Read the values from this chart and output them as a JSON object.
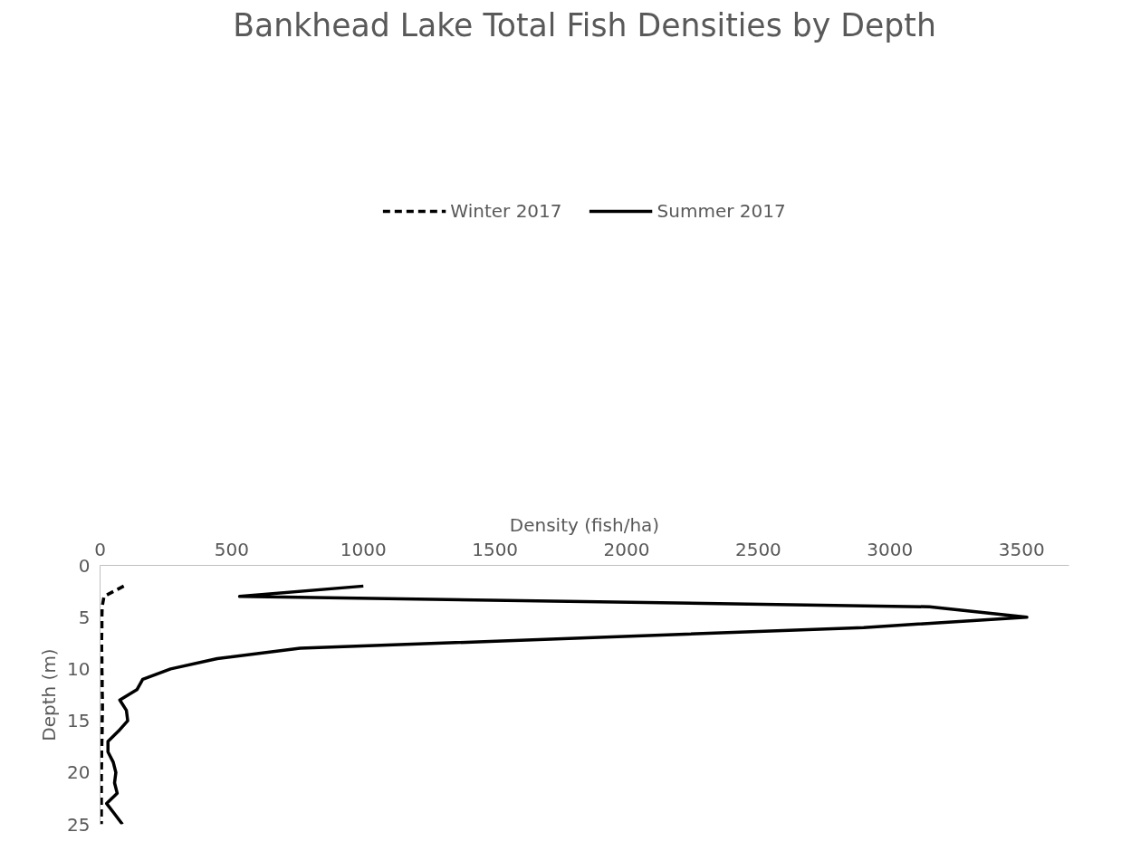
{
  "chart_data": {
    "type": "line",
    "title": "Bankhead Lake Total Fish Densities by Depth",
    "xlabel": "Density (fish/ha)",
    "ylabel": "Depth (m)",
    "orientation": "horizontal",
    "x": [
      2,
      3,
      4,
      5,
      6,
      7,
      8,
      9,
      10,
      11,
      12,
      13,
      14,
      15,
      16,
      17,
      18,
      19,
      20,
      21,
      22,
      23,
      24,
      25
    ],
    "series": [
      {
        "name": "Winter 2017",
        "color": "#000000",
        "line_style": "dashed",
        "values": [
          90,
          15,
          8,
          7,
          7,
          6,
          6,
          7,
          7,
          8,
          8,
          9,
          9,
          8,
          8,
          7,
          6,
          6,
          5,
          5,
          5,
          5,
          5,
          5
        ]
      },
      {
        "name": "Summer 2017",
        "color": "#000000",
        "line_style": "solid",
        "values": [
          1000,
          530,
          3150,
          3520,
          2900,
          1850,
          760,
          445,
          268,
          162,
          140,
          75,
          100,
          105,
          70,
          30,
          30,
          50,
          60,
          55,
          65,
          25,
          55,
          85
        ]
      }
    ],
    "xlim": [
      0,
      3680
    ],
    "xticks": [
      0,
      500,
      1000,
      1500,
      2000,
      2500,
      3000,
      3500
    ],
    "ylim": [
      25,
      0
    ],
    "yticks": [
      0,
      5,
      10,
      15,
      20,
      25
    ],
    "grid": false,
    "legend": "top"
  }
}
